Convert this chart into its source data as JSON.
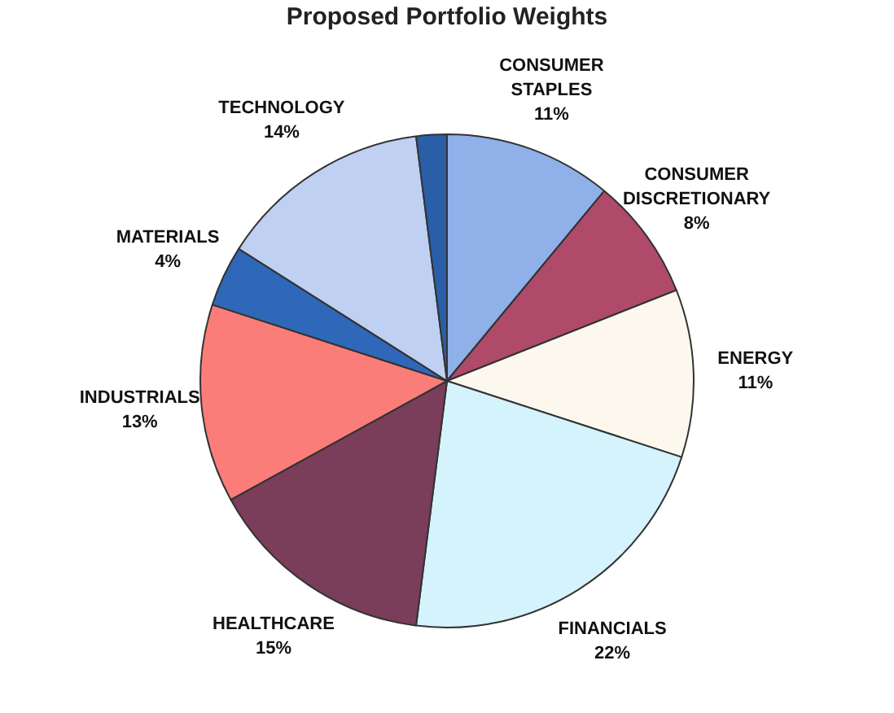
{
  "chart_data": {
    "type": "pie",
    "title": "Proposed Portfolio Weights",
    "categories": [
      "CONSUMER STAPLES",
      "CONSUMER DISCRETIONARY",
      "ENERGY",
      "FINANCIALS",
      "HEALTHCARE",
      "INDUSTRIALS",
      "MATERIALS",
      "TECHNOLOGY",
      null
    ],
    "values": [
      11,
      8,
      11,
      22,
      15,
      13,
      4,
      14,
      2
    ],
    "value_labels": [
      "11%",
      "8%",
      "11%",
      "22%",
      "15%",
      "13%",
      "4%",
      "14%",
      null
    ],
    "colors": [
      "#8fb0e8",
      "#b04a6a",
      "#fdf8ee",
      "#d5f3fc",
      "#7a3d5a",
      "#fb7d7a",
      "#2f68b8",
      "#c0d0f2",
      "#2a5fa8"
    ],
    "legend": false
  }
}
